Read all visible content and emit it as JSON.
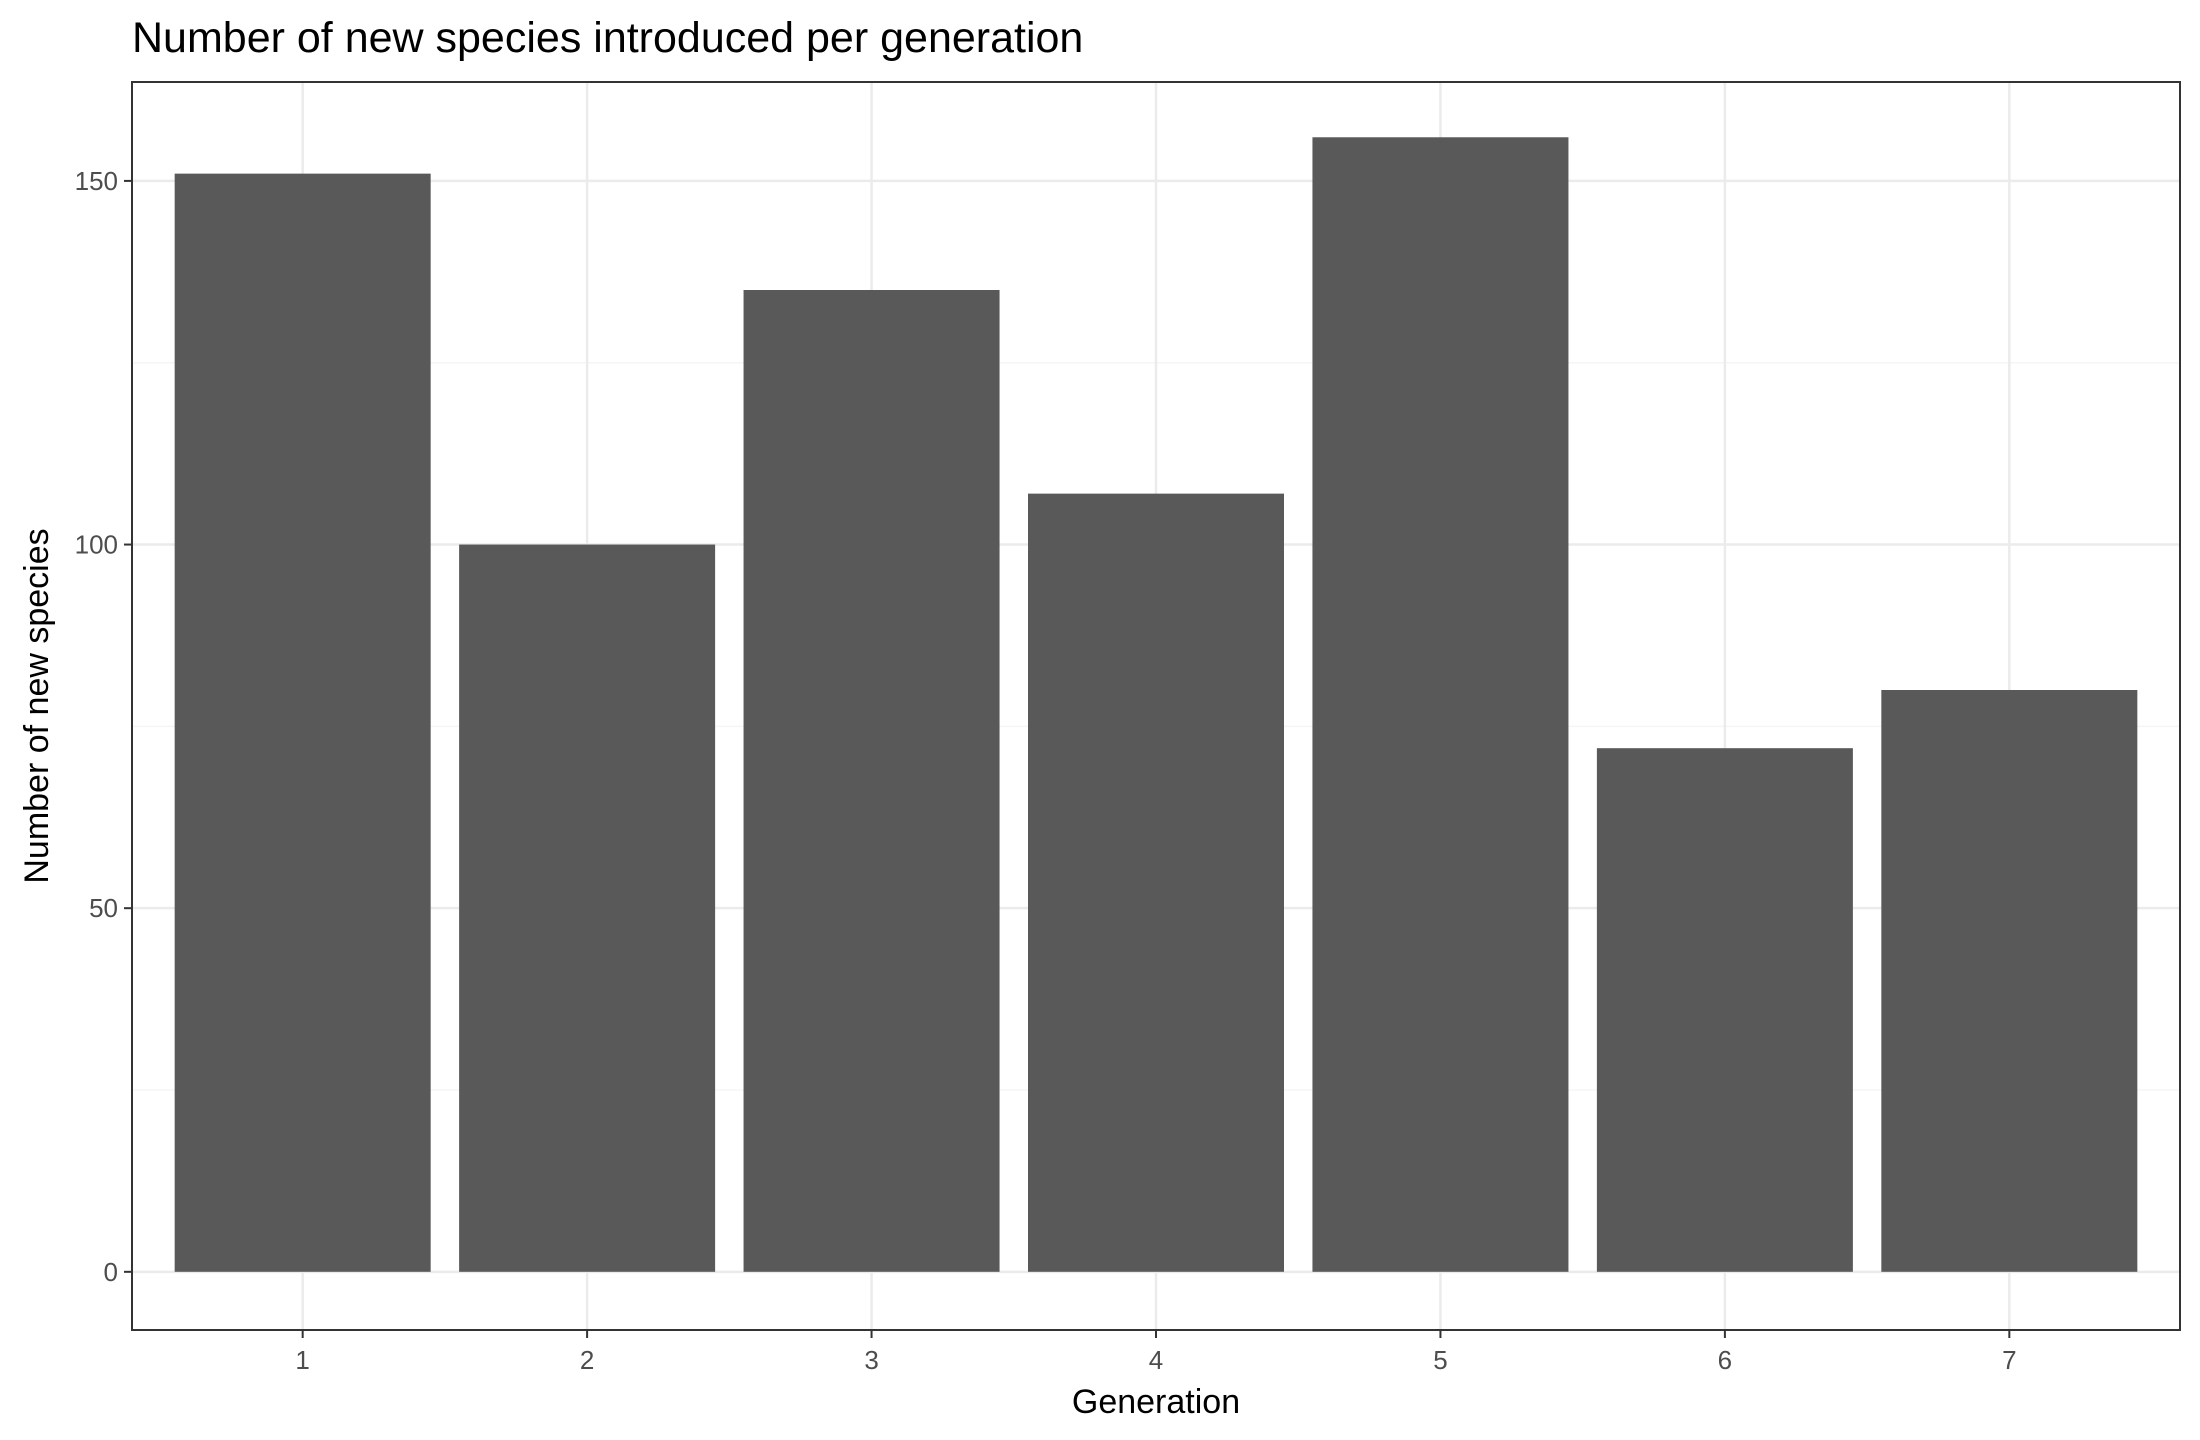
{
  "chart_data": {
    "type": "bar",
    "title": "Number of new species introduced per generation",
    "xlabel": "Generation",
    "ylabel": "Number of new species",
    "categories": [
      "1",
      "2",
      "3",
      "4",
      "5",
      "6",
      "7"
    ],
    "values": [
      151,
      100,
      135,
      107,
      156,
      72,
      80
    ],
    "ylim": [
      -8,
      163.6
    ],
    "yticks": [
      0,
      50,
      100,
      150
    ],
    "ytick_labels": [
      "0",
      "50",
      "100",
      "150"
    ],
    "grid": true,
    "legend": "none",
    "colors": {
      "bar": "#595959",
      "grid_major": "#ebebeb",
      "grid_minor": "#f5f5f5",
      "panel_border": "#333333",
      "tick_label": "#4d4d4d"
    }
  }
}
